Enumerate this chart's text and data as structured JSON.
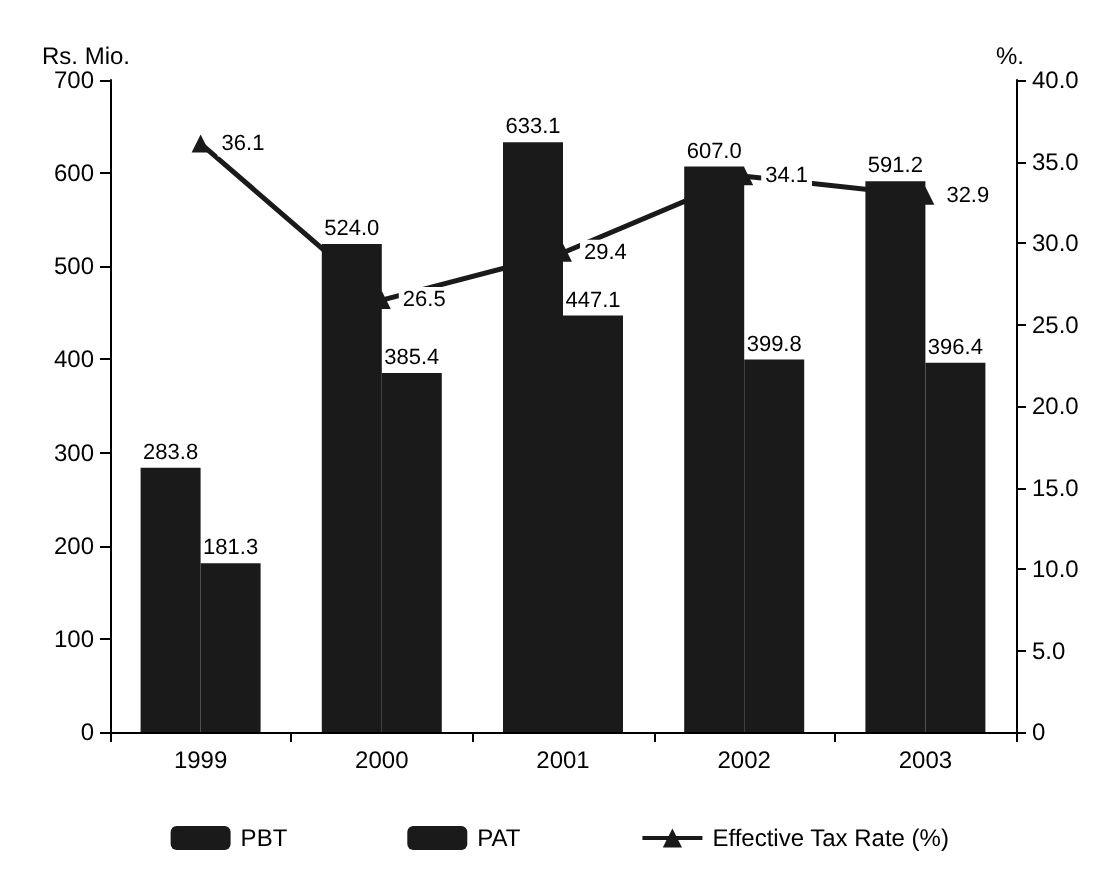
{
  "chart_data": {
    "type": "bar",
    "categories": [
      "1999",
      "2000",
      "2001",
      "2002",
      "2003"
    ],
    "ylabel": "Rs. Mio.",
    "y2label": "%.",
    "series": [
      {
        "name": "PBT",
        "color": "#1a1a1a",
        "values": [
          283.8,
          524.0,
          633.1,
          607.0,
          591.2
        ],
        "value_labels": [
          "283.8",
          "524.0",
          "633.1",
          "607.0",
          "591.2"
        ]
      },
      {
        "name": "PAT",
        "color": "#1a1a1a",
        "values": [
          181.3,
          385.4,
          447.1,
          399.8,
          396.4
        ],
        "value_labels": [
          "181.3",
          "385.4",
          "447.1",
          "399.8",
          "396.4"
        ]
      },
      {
        "name": "Effective Tax Rate (%)",
        "type": "line",
        "axis": "y2",
        "color": "#1a1a1a",
        "marker": "triangle",
        "values": [
          36.1,
          26.5,
          29.4,
          34.1,
          32.9
        ],
        "value_labels": [
          "36.1",
          "26.5",
          "29.4",
          "34.1",
          "32.9"
        ]
      }
    ],
    "ylim": [
      0,
      700
    ],
    "yticks": [
      0,
      100,
      200,
      300,
      400,
      500,
      600,
      700
    ],
    "y2lim": [
      0,
      40
    ],
    "y2ticks": [
      0,
      {
        "value": 5,
        "label": "5.0"
      },
      {
        "value": 10,
        "label": "10.0"
      },
      {
        "value": 15,
        "label": "15.0"
      },
      {
        "value": 20,
        "label": "20.0"
      },
      {
        "value": 25,
        "label": "25.0"
      },
      {
        "value": 30,
        "label": "30.0"
      },
      {
        "value": 35,
        "label": "35.0"
      },
      {
        "value": 40,
        "label": "40.0"
      }
    ],
    "grid": false,
    "legend": "bottom"
  }
}
